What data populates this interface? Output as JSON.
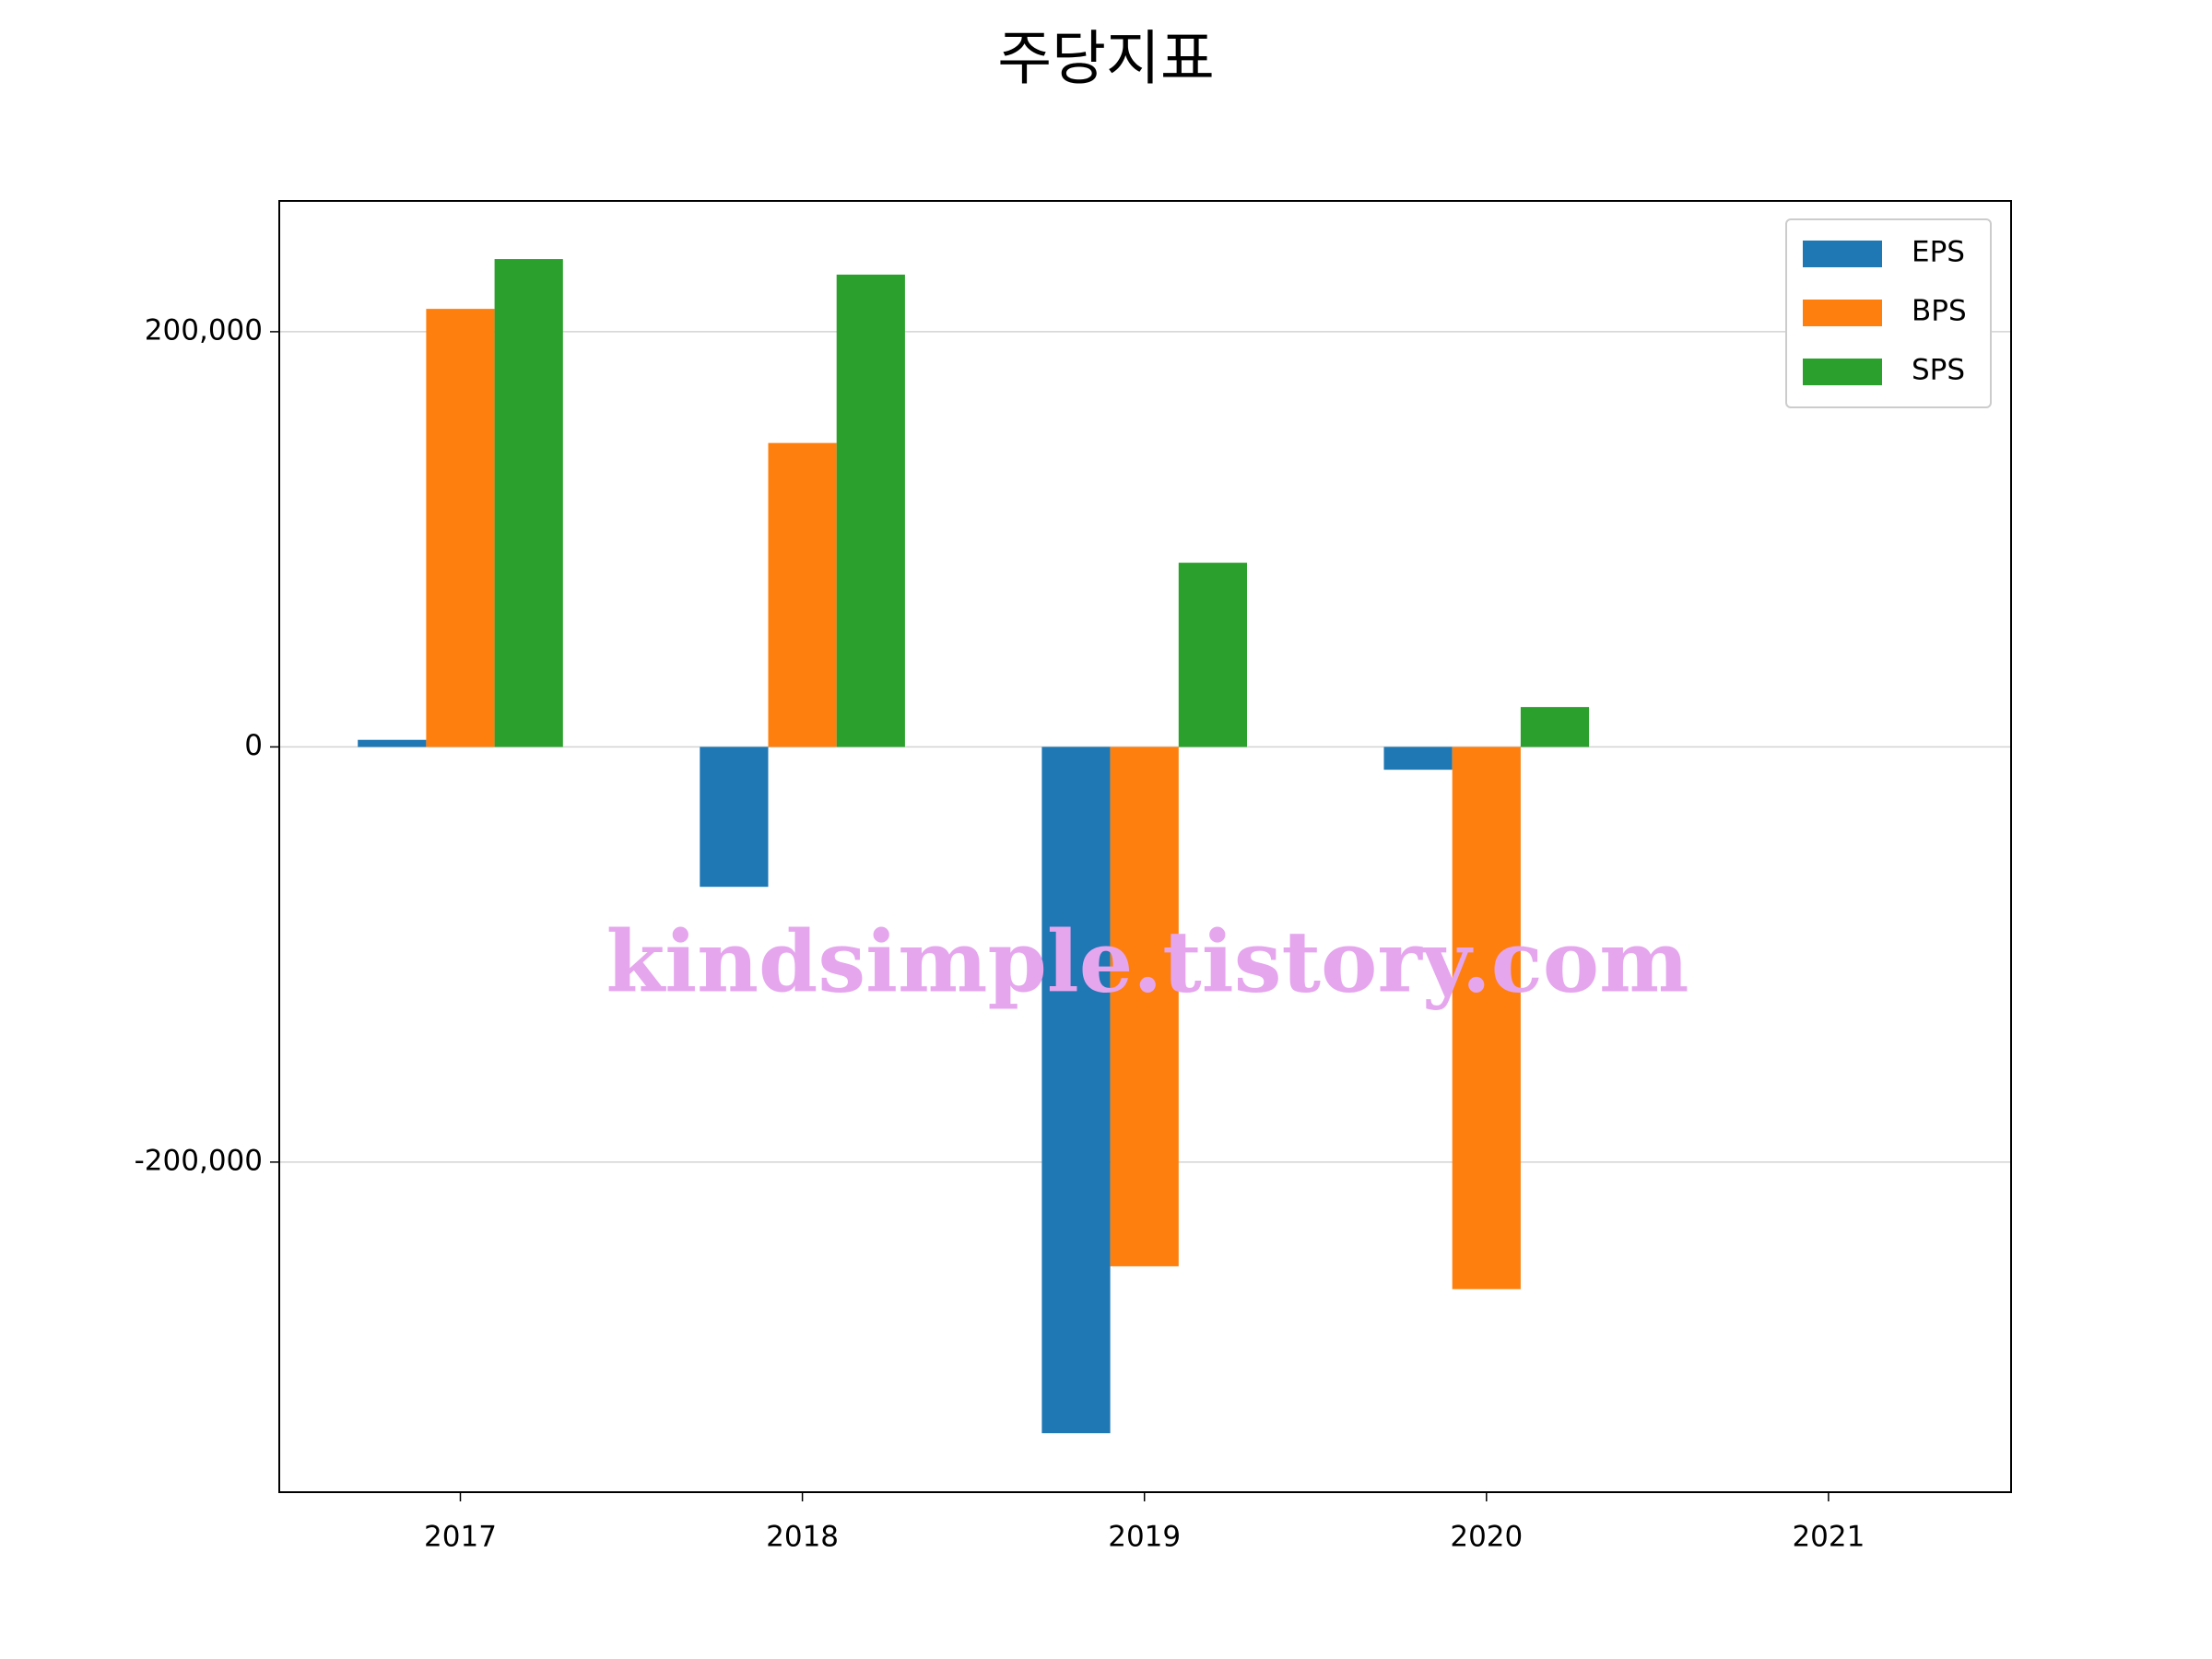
{
  "chart_data": {
    "type": "bar",
    "title": "주당지표",
    "categories": [
      "2017",
      "2018",
      "2019",
      "2020",
      "2021"
    ],
    "series": [
      {
        "name": "EPS",
        "color": "#1f77b4",
        "values": [
          3400,
          -67400,
          -330600,
          -11000,
          null
        ]
      },
      {
        "name": "BPS",
        "color": "#ff7f0e",
        "values": [
          211000,
          146400,
          -250200,
          -261200,
          null
        ]
      },
      {
        "name": "SPS",
        "color": "#2ca02c",
        "values": [
          235000,
          227500,
          88700,
          19200,
          null
        ]
      }
    ],
    "ylim": [
      -359000,
      263000
    ],
    "yticks": [
      {
        "value": -200000,
        "label": "-200,000"
      },
      0,
      {
        "value": 200000,
        "label": "200,000"
      }
    ],
    "grid": true,
    "legend": "upper right",
    "watermark": "kindsimple.tistory.com"
  }
}
